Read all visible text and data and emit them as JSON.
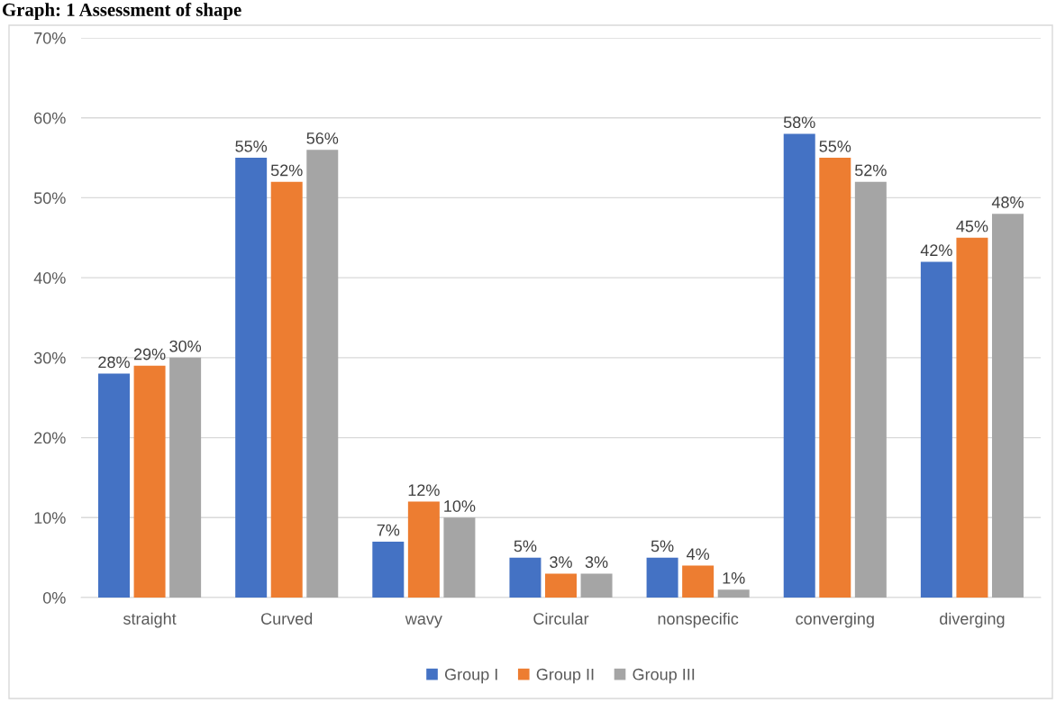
{
  "chart_data": {
    "type": "bar",
    "title": "Graph: 1 Assessment of shape",
    "categories": [
      "straight",
      "Curved",
      "wavy",
      "Circular",
      "nonspecific",
      "converging",
      "diverging"
    ],
    "series": [
      {
        "name": "Group I",
        "color": "#4472c4",
        "values": [
          28,
          55,
          7,
          5,
          5,
          58,
          42
        ],
        "value_labels": [
          "28%",
          "55%",
          "7%",
          "5%",
          "5%",
          "58%",
          "42%"
        ]
      },
      {
        "name": "Group II",
        "color": "#ed7d31",
        "values": [
          29,
          52,
          12,
          3,
          4,
          55,
          45
        ],
        "value_labels": [
          "29%",
          "52%",
          "12%",
          "3%",
          "4%",
          "55%",
          "45%"
        ]
      },
      {
        "name": "Group III",
        "color": "#a5a5a5",
        "values": [
          30,
          56,
          10,
          3,
          1,
          52,
          48
        ],
        "value_labels": [
          "30%",
          "56%",
          "10%",
          "3%",
          "1%",
          "52%",
          "48%"
        ]
      }
    ],
    "ylim": [
      0,
      70
    ],
    "yticks": [
      {
        "value": 0,
        "label": "0%"
      },
      {
        "value": 10,
        "label": "10%"
      },
      {
        "value": 20,
        "label": "20%"
      },
      {
        "value": 30,
        "label": "30%"
      },
      {
        "value": 40,
        "label": "40%"
      },
      {
        "value": 50,
        "label": "50%"
      },
      {
        "value": 60,
        "label": "60%"
      },
      {
        "value": 70,
        "label": "70%"
      }
    ],
    "grid": "y",
    "legend": "bottom"
  }
}
